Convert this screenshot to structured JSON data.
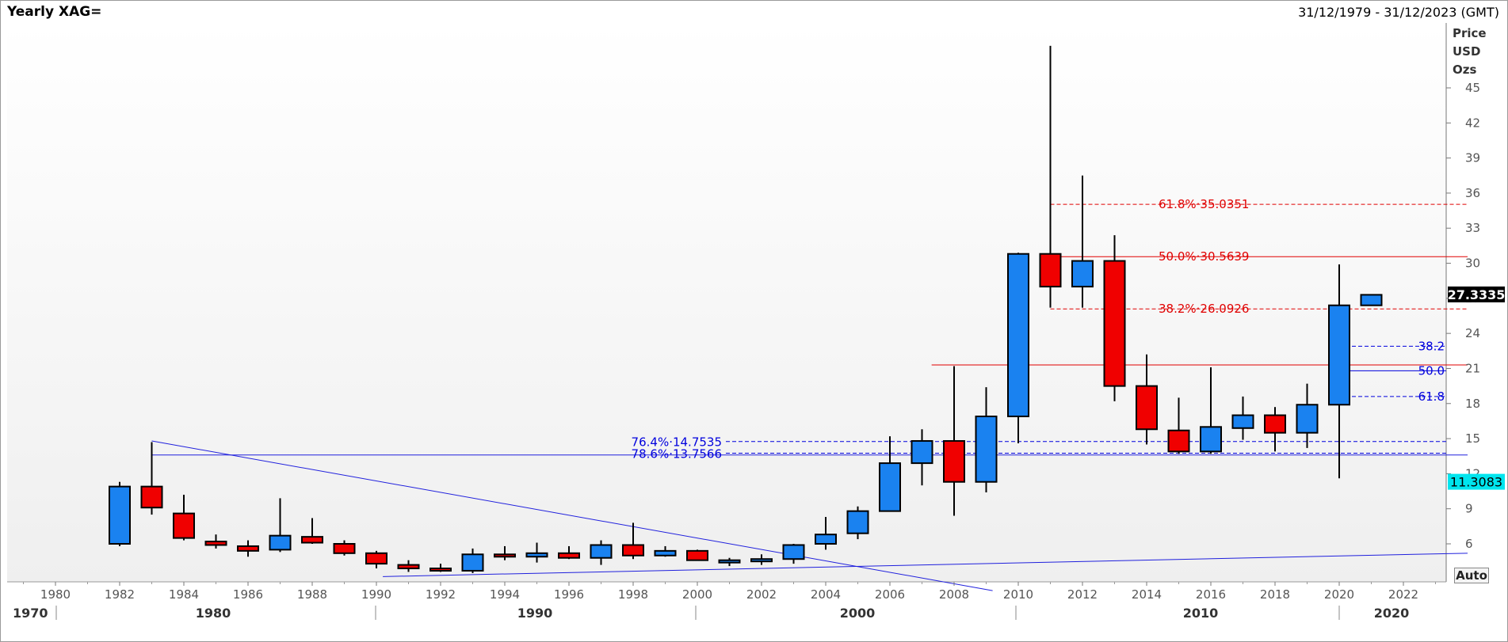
{
  "header": {
    "title": "Yearly XAG=",
    "date_range": "31/12/1979 - 31/12/2023 (GMT)"
  },
  "axis_unit": [
    "Price",
    "USD",
    "Ozs"
  ],
  "auto_label": "Auto",
  "colors": {
    "up": "#1a82f0",
    "down": "#f00000",
    "fib_red": "#e00000",
    "fib_blue": "#0000dd",
    "trend": "#2020dd"
  },
  "chart_data": {
    "type": "candlestick",
    "ylim": [
      2,
      48
    ],
    "xlim": [
      1978.5,
      2024.5
    ],
    "y_ticks": [
      6,
      9,
      12,
      15,
      18,
      21,
      24,
      27,
      30,
      33,
      36,
      39,
      42,
      45
    ],
    "x_year_ticks": [
      1980,
      1982,
      1984,
      1986,
      1988,
      1990,
      1992,
      1994,
      1996,
      1998,
      2000,
      2002,
      2004,
      2006,
      2008,
      2010,
      2012,
      2014,
      2016,
      2018,
      2020,
      2022
    ],
    "x_decades": [
      1970,
      1980,
      1990,
      2000,
      2010,
      2020
    ],
    "candles": [
      {
        "year": 1982,
        "open": 6.0,
        "high": 11.3,
        "low": 5.8,
        "close": 10.9
      },
      {
        "year": 1983,
        "open": 10.9,
        "high": 14.7,
        "low": 8.5,
        "close": 9.1
      },
      {
        "year": 1984,
        "open": 8.6,
        "high": 10.2,
        "low": 6.3,
        "close": 6.5
      },
      {
        "year": 1985,
        "open": 6.2,
        "high": 6.8,
        "low": 5.6,
        "close": 5.9
      },
      {
        "year": 1986,
        "open": 5.8,
        "high": 6.3,
        "low": 4.9,
        "close": 5.4
      },
      {
        "year": 1987,
        "open": 5.5,
        "high": 9.9,
        "low": 5.3,
        "close": 6.7
      },
      {
        "year": 1988,
        "open": 6.6,
        "high": 8.2,
        "low": 6.0,
        "close": 6.1
      },
      {
        "year": 1989,
        "open": 6.0,
        "high": 6.3,
        "low": 5.0,
        "close": 5.2
      },
      {
        "year": 1990,
        "open": 5.2,
        "high": 5.4,
        "low": 3.9,
        "close": 4.3
      },
      {
        "year": 1991,
        "open": 4.2,
        "high": 4.6,
        "low": 3.6,
        "close": 3.9
      },
      {
        "year": 1992,
        "open": 3.9,
        "high": 4.3,
        "low": 3.6,
        "close": 3.7
      },
      {
        "year": 1993,
        "open": 3.7,
        "high": 5.6,
        "low": 3.5,
        "close": 5.1
      },
      {
        "year": 1994,
        "open": 5.1,
        "high": 5.8,
        "low": 4.6,
        "close": 4.9
      },
      {
        "year": 1995,
        "open": 4.9,
        "high": 6.1,
        "low": 4.4,
        "close": 5.2
      },
      {
        "year": 1996,
        "open": 5.2,
        "high": 5.8,
        "low": 4.7,
        "close": 4.8
      },
      {
        "year": 1997,
        "open": 4.8,
        "high": 6.3,
        "low": 4.2,
        "close": 5.9
      },
      {
        "year": 1998,
        "open": 5.9,
        "high": 7.8,
        "low": 4.7,
        "close": 5.0
      },
      {
        "year": 1999,
        "open": 5.0,
        "high": 5.8,
        "low": 4.9,
        "close": 5.4
      },
      {
        "year": 2000,
        "open": 5.4,
        "high": 5.5,
        "low": 4.6,
        "close": 4.6
      },
      {
        "year": 2001,
        "open": 4.6,
        "high": 4.8,
        "low": 4.1,
        "close": 4.6
      },
      {
        "year": 2002,
        "open": 4.6,
        "high": 5.1,
        "low": 4.2,
        "close": 4.7
      },
      {
        "year": 2003,
        "open": 4.7,
        "high": 6.0,
        "low": 4.3,
        "close": 5.9
      },
      {
        "year": 2004,
        "open": 6.0,
        "high": 8.3,
        "low": 5.5,
        "close": 6.8
      },
      {
        "year": 2005,
        "open": 6.9,
        "high": 9.2,
        "low": 6.4,
        "close": 8.8
      },
      {
        "year": 2006,
        "open": 8.8,
        "high": 15.2,
        "low": 8.8,
        "close": 12.9
      },
      {
        "year": 2007,
        "open": 12.9,
        "high": 15.8,
        "low": 11.0,
        "close": 14.8
      },
      {
        "year": 2008,
        "open": 14.8,
        "high": 21.2,
        "low": 8.4,
        "close": 11.3
      },
      {
        "year": 2009,
        "open": 11.3,
        "high": 19.4,
        "low": 10.4,
        "close": 16.9
      },
      {
        "year": 2010,
        "open": 16.9,
        "high": 30.9,
        "low": 14.6,
        "close": 30.8
      },
      {
        "year": 2011,
        "open": 30.8,
        "high": 48.6,
        "low": 26.2,
        "close": 28.0
      },
      {
        "year": 2012,
        "open": 28.0,
        "high": 37.5,
        "low": 26.2,
        "close": 30.2
      },
      {
        "year": 2013,
        "open": 30.2,
        "high": 32.4,
        "low": 18.2,
        "close": 19.5
      },
      {
        "year": 2014,
        "open": 19.5,
        "high": 22.2,
        "low": 14.5,
        "close": 15.8
      },
      {
        "year": 2015,
        "open": 15.7,
        "high": 18.5,
        "low": 13.7,
        "close": 13.9
      },
      {
        "year": 2016,
        "open": 13.9,
        "high": 21.1,
        "low": 13.7,
        "close": 16.0
      },
      {
        "year": 2017,
        "open": 15.9,
        "high": 18.6,
        "low": 14.9,
        "close": 17.0
      },
      {
        "year": 2018,
        "open": 17.0,
        "high": 17.7,
        "low": 13.9,
        "close": 15.5
      },
      {
        "year": 2019,
        "open": 15.5,
        "high": 19.7,
        "low": 14.2,
        "close": 17.9
      },
      {
        "year": 2020,
        "open": 17.9,
        "high": 29.9,
        "low": 11.6,
        "close": 26.4
      },
      {
        "year": 2021,
        "open": 26.4,
        "high": 27.3,
        "low": 26.4,
        "close": 27.3
      }
    ],
    "fib_red": [
      {
        "label": "61.8%·35.0351",
        "value": 35.0351,
        "dashed": true,
        "from": 2011,
        "to": 2024
      },
      {
        "label": "50.0%·30.5639",
        "value": 30.5639,
        "dashed": false,
        "from": 2011,
        "to": 2024
      },
      {
        "label": "38.2%·26.0926",
        "value": 26.0926,
        "dashed": true,
        "from": 2011,
        "to": 2024
      }
    ],
    "extra_red_line": {
      "value": 21.3,
      "from": 2007.3,
      "to": 2024
    },
    "fib_blue_right": [
      {
        "label": "38.2",
        "value": 22.9,
        "dashed": true
      },
      {
        "label": "50.0",
        "value": 20.8,
        "dashed": false
      },
      {
        "label": "61.8",
        "value": 18.6,
        "dashed": true
      }
    ],
    "fib_blue_left": [
      {
        "label": "76.4%·14.7535",
        "value": 14.7535,
        "dashed": true
      },
      {
        "label": "78.6%·13.7566",
        "value": 13.7566,
        "dashed": true
      }
    ],
    "horizontal_line": {
      "value": 13.6,
      "from": 1983,
      "to": 2024
    },
    "trendlines": [
      {
        "x1": 1983,
        "y1": 14.8,
        "x2": 2009.2,
        "y2": 2.0
      },
      {
        "x1": 1990.2,
        "y1": 3.2,
        "x2": 2024.0,
        "y2": 5.2
      }
    ],
    "last_price": "27.3335",
    "last_price_value": 27.3335,
    "low_price": "11.3083",
    "low_price_value": 11.3083
  }
}
